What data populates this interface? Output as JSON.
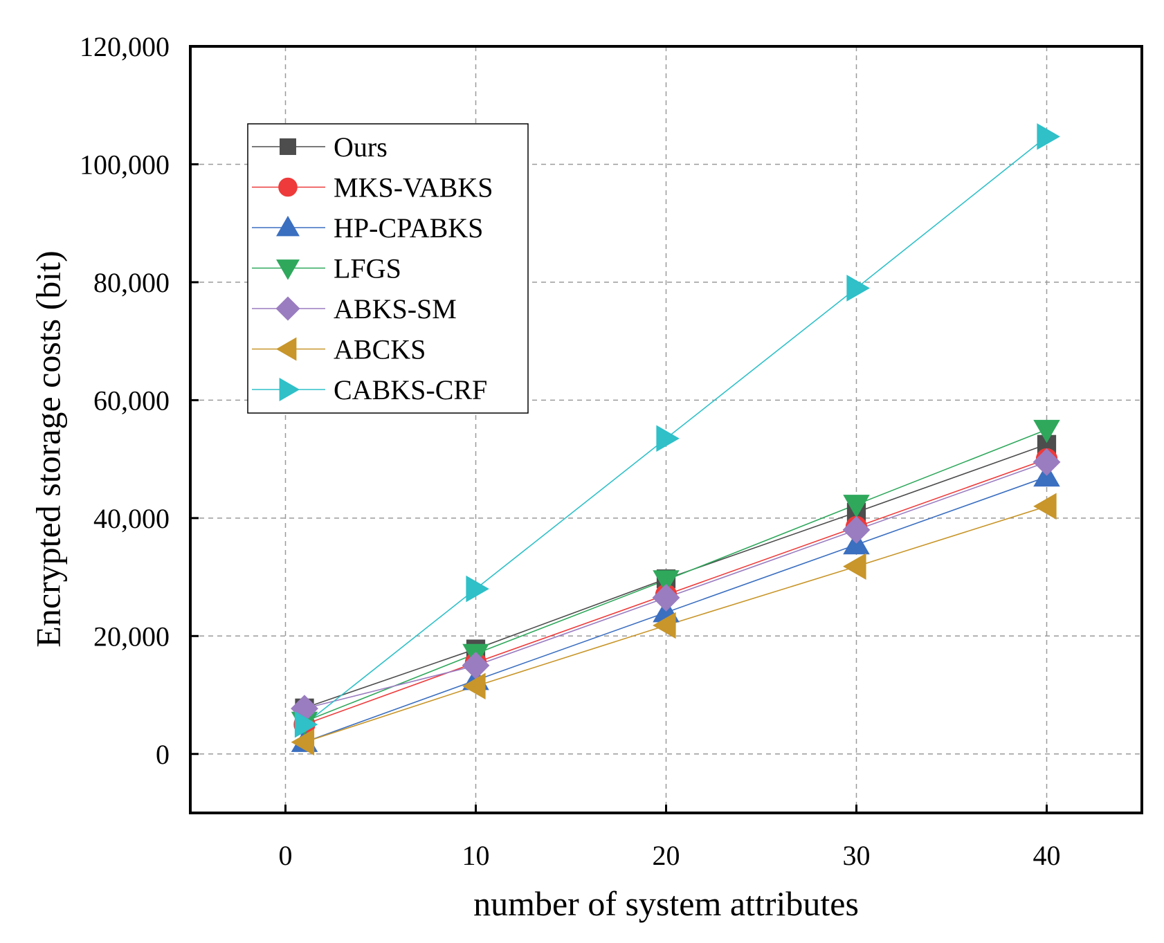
{
  "chart_data": {
    "type": "line",
    "title": "",
    "xlabel": "number of system attributes",
    "ylabel": "Encrypted storage costs (bit)",
    "xlim": [
      -5,
      45
    ],
    "ylim": [
      -10000,
      120000
    ],
    "xticks": [
      0,
      10,
      20,
      30,
      40
    ],
    "yticks": [
      0,
      20000,
      40000,
      60000,
      80000,
      100000,
      120000
    ],
    "xtick_labels": [
      "0",
      "10",
      "20",
      "30",
      "40"
    ],
    "ytick_labels": [
      "0",
      "20,000",
      "40,000",
      "60,000",
      "80,000",
      "100,000",
      "120,000"
    ],
    "grid": true,
    "legend_position": "top-left",
    "x": [
      1,
      10,
      20,
      30,
      40
    ],
    "series": [
      {
        "name": "Ours",
        "marker": "square",
        "color": "#4d4d4d",
        "values": [
          7800,
          17800,
          29700,
          41000,
          52500
        ]
      },
      {
        "name": "MKS-VABKS",
        "marker": "circle",
        "color": "#ee3a3a",
        "values": [
          5000,
          15500,
          27000,
          38500,
          50000
        ]
      },
      {
        "name": "HP-CPABKS",
        "marker": "triangle-up",
        "color": "#3b6fc0",
        "values": [
          2000,
          12500,
          24000,
          35500,
          47000
        ]
      },
      {
        "name": " LFGS",
        "marker": "triangle-down",
        "color": "#2fa85c",
        "values": [
          5500,
          17000,
          29500,
          42300,
          55000
        ]
      },
      {
        "name": " ABKS-SM",
        "marker": "diamond",
        "color": "#9a7cc0",
        "values": [
          7700,
          15000,
          26500,
          38000,
          49500
        ]
      },
      {
        "name": "ABCKS",
        "marker": "triangle-left",
        "color": "#c8962a",
        "values": [
          2000,
          11500,
          21800,
          31800,
          42000
        ]
      },
      {
        "name": "CABKS-CRF",
        "marker": "triangle-right",
        "color": "#2fc0c8",
        "values": [
          5000,
          28000,
          53500,
          79000,
          104700
        ]
      }
    ]
  }
}
